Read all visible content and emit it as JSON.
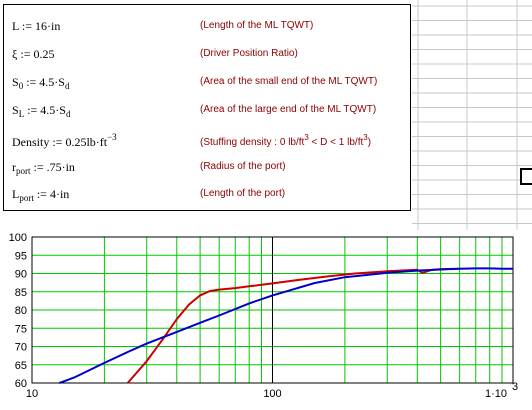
{
  "worksheet": {
    "definitions": [
      {
        "id": "L",
        "label": "L",
        "sub": "",
        "assign": " := 16·in",
        "sup": "",
        "comment": "(Length of the ML TQWT)",
        "csup1": "",
        "cmid": "",
        "csup2": "",
        "cend": ""
      },
      {
        "id": "xi",
        "label": "ξ",
        "sub": "",
        "assign": " := 0.25",
        "sup": "",
        "comment": "(Driver Position Ratio)",
        "csup1": "",
        "cmid": "",
        "csup2": "",
        "cend": ""
      },
      {
        "id": "s0",
        "label": "S",
        "sub": "0",
        "assign": " := 4.5·S",
        "sub2": "d",
        "sup": "",
        "comment": "(Area of the small end of the ML TQWT)",
        "csup1": "",
        "cmid": "",
        "csup2": "",
        "cend": ""
      },
      {
        "id": "sl",
        "label": "S",
        "sub": "L",
        "assign": " := 4.5·S",
        "sub2": "d",
        "sup": "",
        "comment": "(Area of the large end of the ML TQWT)",
        "csup1": "",
        "cmid": "",
        "csup2": "",
        "cend": ""
      },
      {
        "id": "density",
        "label": "Density",
        "sub": "",
        "assign": " := 0.25lb·ft",
        "sub2": "",
        "sup": "−3",
        "comment": "(Stuffing density : 0 lb/ft",
        "csup1": "3",
        "cmid": " < D < 1 lb/ft",
        "csup2": "3",
        "cend": ")"
      },
      {
        "id": "rport",
        "label": "r",
        "sub": "port",
        "assign": " := .75·in",
        "sub2": "",
        "sup": "",
        "comment": "(Radius of the port)",
        "csup1": "",
        "cmid": "",
        "csup2": "",
        "cend": ""
      },
      {
        "id": "lport",
        "label": "L",
        "sub": "port",
        "assign": " := 4·in",
        "sub2": "",
        "sup": "",
        "comment": "(Length of the port)",
        "csup1": "",
        "cmid": "",
        "csup2": "",
        "cend": ""
      }
    ]
  },
  "colors": {
    "plot_background": "#ffffff",
    "grid": "#00c800",
    "red_trace": "#cc0000",
    "blue_trace": "#0000cc",
    "comment_text": "#8b0000",
    "sheet_grid": "#c8c8c8"
  },
  "chart_data": {
    "type": "line",
    "x_scale": "log",
    "xlim": [
      10,
      1000
    ],
    "ylim": [
      60,
      100
    ],
    "ytick_labels": [
      "100",
      "95",
      "90",
      "85",
      "80",
      "75",
      "70",
      "65",
      "60"
    ],
    "xtick_labels": [
      "10",
      "100",
      "1·10",
      "3"
    ],
    "grid": true,
    "series": [
      {
        "color": "#cc0000",
        "x": [
          25,
          30,
          35,
          40,
          45,
          50,
          55,
          60,
          70,
          80,
          100,
          130,
          170,
          220,
          300,
          400,
          420,
          440,
          460,
          500,
          600
        ],
        "y": [
          60,
          66,
          72,
          77.5,
          81.5,
          84,
          85.2,
          85.6,
          86,
          86.5,
          87.3,
          88.3,
          89.2,
          90,
          90.6,
          91,
          90.2,
          90.6,
          91,
          91.2,
          91.3
        ]
      },
      {
        "color": "#0000cc",
        "x": [
          13,
          15,
          20,
          25,
          30,
          40,
          50,
          60,
          80,
          100,
          150,
          200,
          300,
          400,
          500,
          600,
          700,
          800,
          900,
          1000
        ],
        "y": [
          60,
          61.5,
          65.5,
          68.5,
          70.8,
          74,
          76.5,
          78.5,
          81.8,
          84,
          87.4,
          89,
          90.2,
          90.8,
          91.1,
          91.3,
          91.4,
          91.4,
          91.3,
          91.3
        ]
      }
    ]
  }
}
